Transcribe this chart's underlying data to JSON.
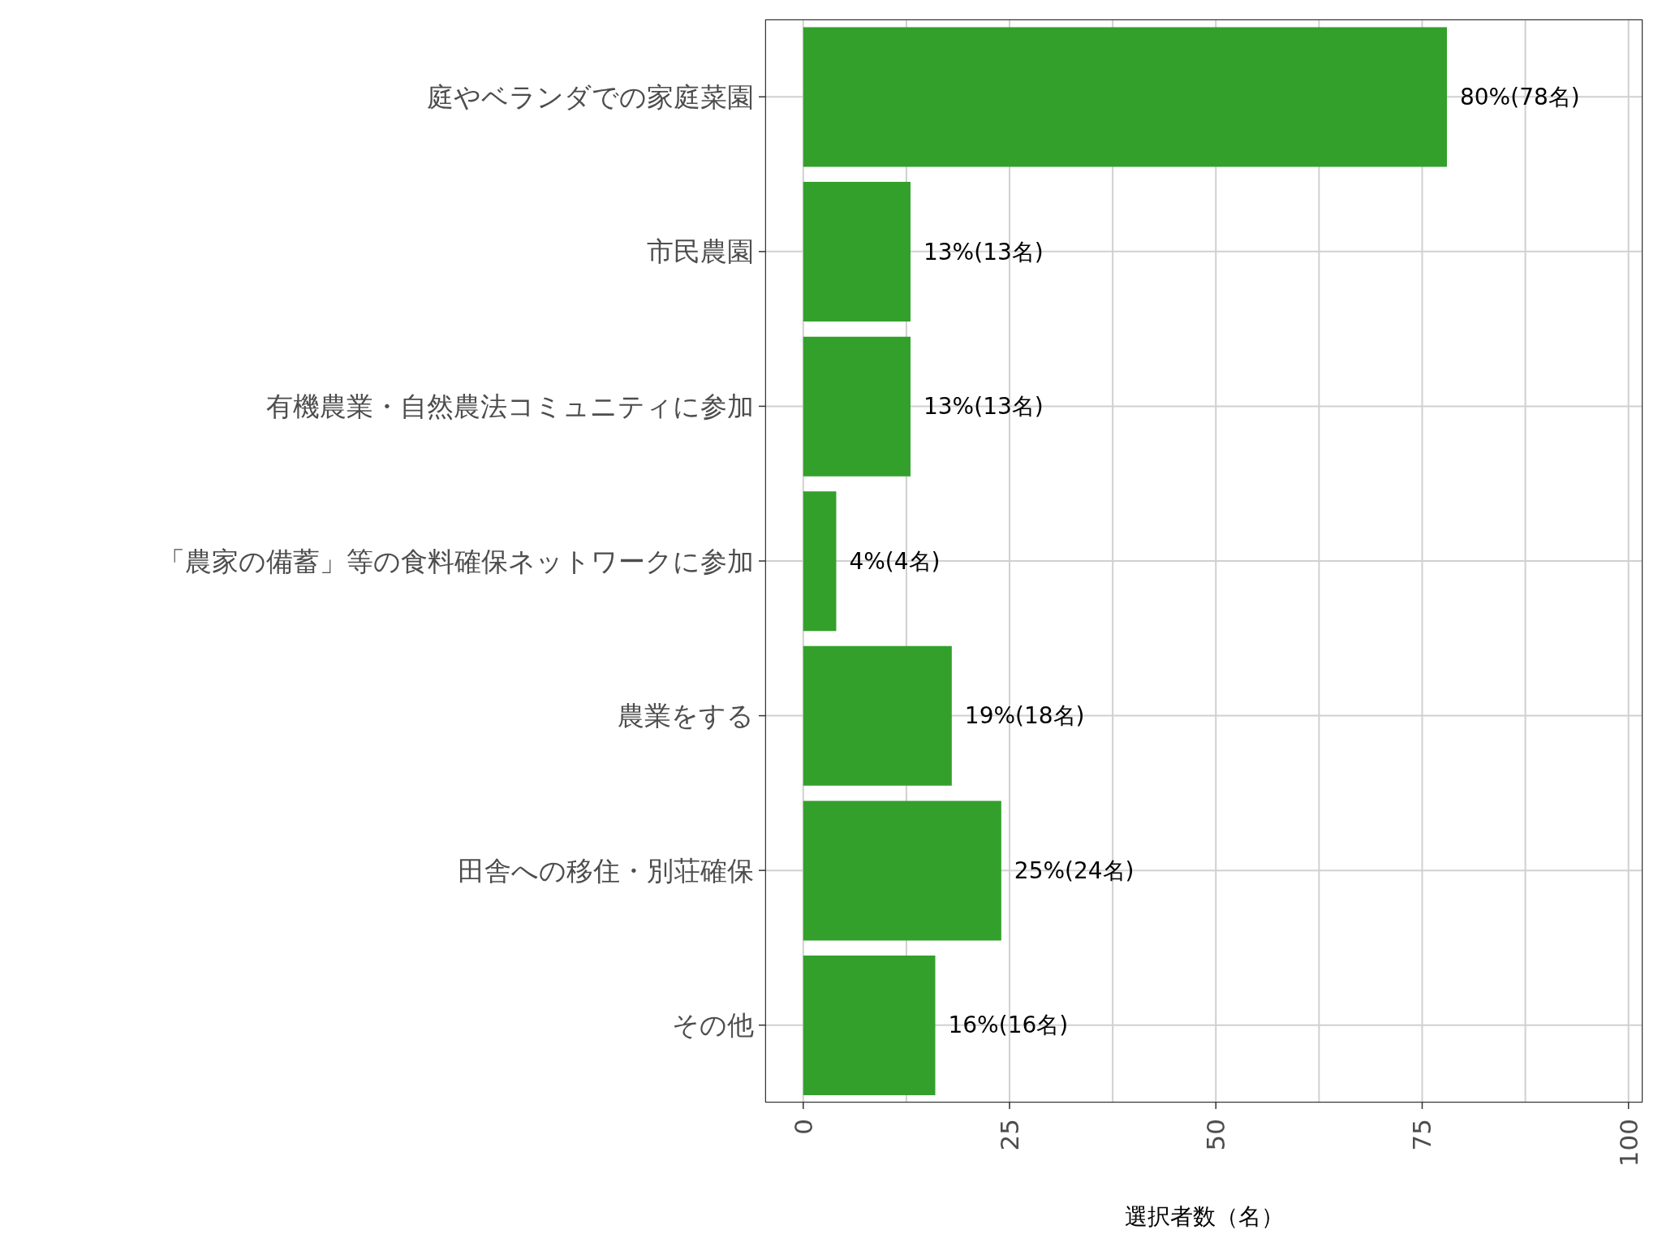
{
  "chart_data": {
    "type": "bar",
    "orientation": "horizontal",
    "categories": [
      "庭やベランダでの家庭菜園",
      "市民農園",
      "有機農業・自然農法コミュニティに参加",
      "「農家の備蓄」等の食料確保ネットワークに参加",
      "農業をする",
      "田舎への移住・別荘確保",
      "その他"
    ],
    "values": [
      78,
      13,
      13,
      4,
      18,
      24,
      16
    ],
    "value_labels": [
      "80%(78名)",
      "13%(13名)",
      "13%(13名)",
      "4%(4名)",
      "19%(18名)",
      "25%(24名)",
      "16%(16名)"
    ],
    "color": "#33a02c",
    "xlabel": "選択者数（名）",
    "xlim": [
      -4.6,
      101.7
    ],
    "xticks": [
      0,
      {
        "value": 12.5,
        "label": null
      },
      25,
      {
        "value": 37.5,
        "label": null
      },
      50,
      {
        "value": 62.5,
        "label": null
      },
      75,
      {
        "value": 87.5,
        "label": null
      },
      100
    ],
    "grid": true
  }
}
